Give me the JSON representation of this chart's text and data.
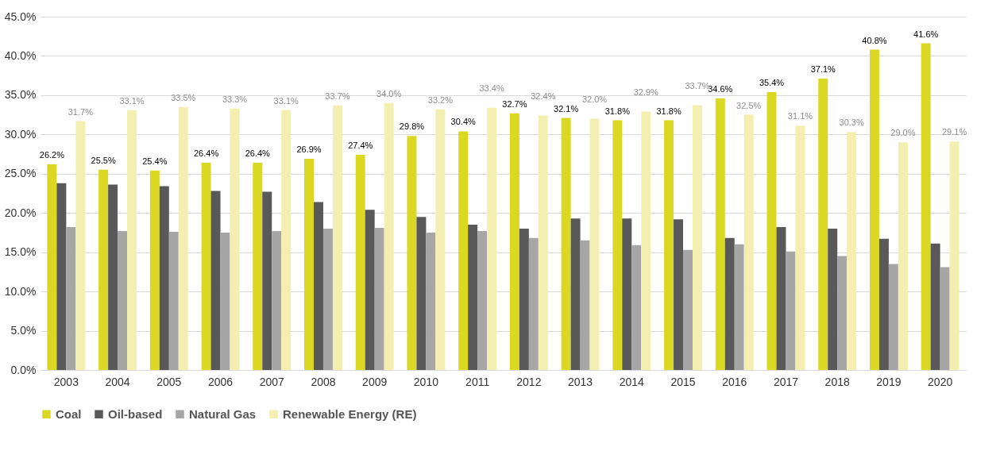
{
  "chart_data": {
    "type": "bar",
    "categories": [
      "2003",
      "2004",
      "2005",
      "2006",
      "2007",
      "2008",
      "2009",
      "2010",
      "2011",
      "2012",
      "2013",
      "2014",
      "2015",
      "2016",
      "2017",
      "2018",
      "2019",
      "2020"
    ],
    "series": [
      {
        "name": "Coal",
        "color": "#dbd823",
        "values": [
          26.2,
          25.5,
          25.4,
          26.4,
          26.4,
          26.9,
          27.4,
          29.8,
          30.4,
          32.7,
          32.1,
          31.8,
          31.8,
          34.6,
          35.4,
          37.1,
          40.8,
          41.6
        ],
        "value_labels": [
          "26.2%",
          "25.5%",
          "25.4%",
          "26.4%",
          "26.4%",
          "26.9%",
          "27.4%",
          "29.8%",
          "30.4%",
          "32.7%",
          "32.1%",
          "31.8%",
          "31.8%",
          "34.6%",
          "35.4%",
          "37.1%",
          "40.8%",
          "41.6%"
        ]
      },
      {
        "name": "Oil-based",
        "color": "#595959",
        "values": [
          23.8,
          23.6,
          23.4,
          22.8,
          22.7,
          21.4,
          20.4,
          19.5,
          18.5,
          18.0,
          19.3,
          19.3,
          19.2,
          16.8,
          18.2,
          18.0,
          16.7,
          16.1
        ]
      },
      {
        "name": "Natural Gas",
        "color": "#a6a6a6",
        "values": [
          18.2,
          17.7,
          17.6,
          17.5,
          17.7,
          18.0,
          18.1,
          17.5,
          17.7,
          16.8,
          16.5,
          15.9,
          15.3,
          16.0,
          15.1,
          14.5,
          13.5,
          13.1
        ]
      },
      {
        "name": "Renewable Energy (RE)",
        "color": "#f3efb0",
        "values": [
          31.7,
          33.1,
          33.5,
          33.3,
          33.1,
          33.7,
          34.0,
          33.2,
          33.4,
          32.4,
          32.0,
          32.9,
          33.7,
          32.5,
          31.1,
          30.3,
          29.0,
          29.1
        ],
        "value_labels": [
          "31.7%",
          "33.1%",
          "33.5%",
          "33.3%",
          "33.1%",
          "33.7%",
          "34.0%",
          "33.2%",
          "33.4%",
          "32.4%",
          "32.0%",
          "32.9%",
          "33.7%",
          "32.5%",
          "31.1%",
          "30.3%",
          "29.0%",
          "29.1%"
        ]
      }
    ],
    "ylim": [
      0,
      45
    ],
    "yticks": [
      {
        "value": 0,
        "label": "0.0%"
      },
      {
        "value": 5,
        "label": "5.0%"
      },
      {
        "value": 10,
        "label": "10.0%"
      },
      {
        "value": 15,
        "label": "15.0%"
      },
      {
        "value": 20,
        "label": "20.0%"
      },
      {
        "value": 25,
        "label": "25.0%"
      },
      {
        "value": 30,
        "label": "30.0%"
      },
      {
        "value": 35,
        "label": "35.0%"
      },
      {
        "value": 40,
        "label": "40.0%"
      },
      {
        "value": 45,
        "label": "45.0%"
      }
    ],
    "grid": "y",
    "legend": "bottom"
  }
}
